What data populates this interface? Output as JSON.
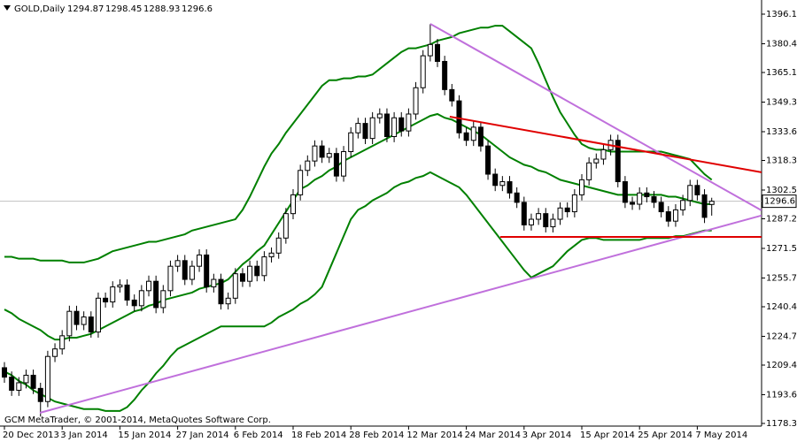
{
  "chart_data": {
    "type": "candlestick",
    "title": "GOLD,Daily",
    "footer": "GCM MetaTrader, © 2001-2014, MetaQuotes Software Corp.",
    "categories": [
      "20 Dec 2013",
      null,
      null,
      null,
      null,
      null,
      null,
      null,
      "3 Jan 2014",
      null,
      null,
      null,
      null,
      null,
      null,
      null,
      "15 Jan 2014",
      null,
      null,
      null,
      null,
      null,
      null,
      null,
      "27 Jan 2014",
      null,
      null,
      null,
      null,
      null,
      null,
      null,
      "6 Feb 2014",
      null,
      null,
      null,
      null,
      null,
      null,
      null,
      "18 Feb 2014",
      null,
      null,
      null,
      null,
      null,
      null,
      null,
      "28 Feb 2014",
      null,
      null,
      null,
      null,
      null,
      null,
      null,
      "12 Mar 2014",
      null,
      null,
      null,
      null,
      null,
      null,
      null,
      "24 Mar 2014",
      null,
      null,
      null,
      null,
      null,
      null,
      null,
      "3 Apr 2014",
      null,
      null,
      null,
      null,
      null,
      null,
      null,
      "15 Apr 2014",
      null,
      null,
      null,
      null,
      null,
      null,
      null,
      "25 Apr 2014",
      null,
      null,
      null,
      null,
      null,
      null,
      null,
      "7 May 2014",
      null,
      null
    ],
    "open": [
      1208,
      1203,
      1196,
      1200,
      1204,
      1197,
      1190,
      1214,
      1218,
      1225,
      1238,
      1231,
      1235,
      1227,
      1245,
      1243,
      1251,
      1252,
      1244,
      1241,
      1249,
      1254,
      1240,
      1249,
      1262,
      1265,
      1255,
      1262,
      1268,
      1251,
      1255,
      1242,
      1245,
      1258,
      1254,
      1262,
      1257,
      1267,
      1269,
      1277,
      1290,
      1300,
      1313,
      1318,
      1326,
      1320,
      1322,
      1310,
      1323,
      1333,
      1338,
      1330,
      1341,
      1343,
      1331,
      1341,
      1334,
      1343,
      1357,
      1374,
      1380,
      1371,
      1356,
      1350,
      1333,
      1329,
      1336,
      1326,
      1311,
      1305,
      1307,
      1301,
      1296,
      1284,
      1287,
      1290,
      1283,
      1287,
      1293,
      1291,
      1300,
      1308,
      1317,
      1319,
      1324,
      1329,
      1307,
      1296,
      1295,
      1301,
      1299,
      1296,
      1291,
      1286,
      1292,
      1297,
      1305,
      1300,
      1294.87
    ],
    "high": [
      1211,
      1206,
      1203,
      1207,
      1207,
      1200,
      1217,
      1221,
      1228,
      1241,
      1241,
      1238,
      1238,
      1248,
      1248,
      1254,
      1255,
      1255,
      1247,
      1252,
      1257,
      1257,
      1252,
      1265,
      1268,
      1268,
      1265,
      1271,
      1271,
      1258,
      1258,
      1248,
      1261,
      1261,
      1265,
      1265,
      1270,
      1272,
      1280,
      1293,
      1303,
      1316,
      1321,
      1329,
      1329,
      1325,
      1325,
      1326,
      1336,
      1341,
      1341,
      1344,
      1346,
      1346,
      1344,
      1344,
      1346,
      1360,
      1377,
      1391,
      1383,
      1374,
      1359,
      1353,
      1336,
      1339,
      1339,
      1329,
      1314,
      1310,
      1310,
      1304,
      1299,
      1290,
      1293,
      1293,
      1290,
      1296,
      1296,
      1303,
      1311,
      1320,
      1322,
      1327,
      1332,
      1332,
      1310,
      1299,
      1304,
      1304,
      1302,
      1299,
      1294,
      1295,
      1300,
      1308,
      1308,
      1303,
      1298.45
    ],
    "low": [
      1200,
      1193,
      1193,
      1197,
      1194,
      1182,
      1187,
      1211,
      1215,
      1222,
      1228,
      1228,
      1224,
      1224,
      1240,
      1240,
      1248,
      1241,
      1238,
      1238,
      1246,
      1237,
      1237,
      1246,
      1259,
      1252,
      1252,
      1259,
      1248,
      1248,
      1239,
      1239,
      1242,
      1251,
      1251,
      1254,
      1254,
      1264,
      1266,
      1274,
      1287,
      1297,
      1310,
      1315,
      1317,
      1317,
      1307,
      1307,
      1320,
      1330,
      1327,
      1327,
      1338,
      1328,
      1328,
      1331,
      1331,
      1340,
      1354,
      1371,
      1368,
      1353,
      1347,
      1330,
      1326,
      1326,
      1323,
      1308,
      1302,
      1302,
      1298,
      1293,
      1281,
      1281,
      1284,
      1280,
      1280,
      1284,
      1288,
      1288,
      1297,
      1305,
      1314,
      1316,
      1321,
      1304,
      1293,
      1292,
      1292,
      1296,
      1293,
      1288,
      1283,
      1283,
      1289,
      1294,
      1297,
      1285,
      1288.93
    ],
    "close": [
      1203,
      1196,
      1200,
      1204,
      1197,
      1190,
      1214,
      1218,
      1225,
      1238,
      1231,
      1235,
      1227,
      1245,
      1243,
      1251,
      1252,
      1244,
      1241,
      1249,
      1254,
      1240,
      1249,
      1262,
      1265,
      1255,
      1262,
      1268,
      1251,
      1255,
      1242,
      1245,
      1258,
      1254,
      1262,
      1257,
      1267,
      1269,
      1277,
      1290,
      1300,
      1313,
      1318,
      1326,
      1320,
      1322,
      1310,
      1323,
      1333,
      1338,
      1330,
      1341,
      1343,
      1331,
      1341,
      1334,
      1343,
      1357,
      1374,
      1380,
      1371,
      1356,
      1350,
      1333,
      1329,
      1336,
      1326,
      1311,
      1305,
      1307,
      1301,
      1296,
      1284,
      1287,
      1290,
      1283,
      1287,
      1293,
      1291,
      1300,
      1308,
      1317,
      1319,
      1324,
      1329,
      1307,
      1296,
      1295,
      1301,
      1299,
      1296,
      1291,
      1286,
      1292,
      1297,
      1305,
      1300,
      1288,
      1296.6
    ],
    "up_color": "#ffffff",
    "down_color": "#000000",
    "bands": [
      {
        "color": "#008000",
        "values": [
          1267,
          1267,
          1266,
          1266,
          1266,
          1265,
          1265,
          1265,
          1265,
          1264,
          1264,
          1264,
          1265,
          1266,
          1268,
          1270,
          1271,
          1272,
          1273,
          1274,
          1275,
          1275,
          1276,
          1277,
          1278,
          1279,
          1281,
          1282,
          1283,
          1284,
          1285,
          1286,
          1287,
          1292,
          1299,
          1307,
          1315,
          1322,
          1327,
          1333,
          1338,
          1343,
          1348,
          1353,
          1358,
          1361,
          1361,
          1362,
          1362,
          1363,
          1363,
          1364,
          1367,
          1370,
          1373,
          1376,
          1378,
          1378,
          1379,
          1380,
          1382,
          1383,
          1384,
          1386,
          1387,
          1388,
          1389,
          1389,
          1390,
          1390,
          1387,
          1384,
          1381,
          1378,
          1370,
          1361,
          1352,
          1344,
          1338,
          1332,
          1327,
          1325,
          1324,
          1324,
          1323,
          1323,
          1323,
          1323,
          1323,
          1323,
          1323,
          1323,
          1322,
          1321,
          1320,
          1319,
          1315,
          1311,
          1308
        ]
      },
      {
        "color": "#008000",
        "values": [
          1239,
          1237,
          1234,
          1232,
          1230,
          1228,
          1225,
          1223,
          1223,
          1224,
          1224,
          1225,
          1226,
          1228,
          1230,
          1232,
          1234,
          1236,
          1238,
          1239,
          1241,
          1242,
          1244,
          1245,
          1246,
          1247,
          1248,
          1250,
          1251,
          1252,
          1253,
          1255,
          1259,
          1263,
          1266,
          1270,
          1273,
          1279,
          1285,
          1291,
          1297,
          1303,
          1305,
          1308,
          1310,
          1313,
          1315,
          1318,
          1320,
          1322,
          1324,
          1326,
          1328,
          1330,
          1332,
          1334,
          1336,
          1338,
          1340,
          1342,
          1343,
          1341,
          1340,
          1338,
          1336,
          1334,
          1332,
          1329,
          1326,
          1323,
          1320,
          1318,
          1316,
          1315,
          1313,
          1312,
          1310,
          1308,
          1307,
          1306,
          1305,
          1304,
          1303,
          1302,
          1301,
          1300,
          1300,
          1300,
          1300,
          1300,
          1300,
          1300,
          1299,
          1299,
          1298,
          1297,
          1296,
          1295,
          1295
        ]
      },
      {
        "color": "#008000",
        "values": [
          1206,
          1204,
          1201,
          1199,
          1196,
          1194,
          1192,
          1190,
          1189,
          1188,
          1187,
          1186,
          1186,
          1186,
          1185,
          1185,
          1185,
          1187,
          1191,
          1196,
          1200,
          1205,
          1209,
          1214,
          1218,
          1220,
          1222,
          1224,
          1226,
          1228,
          1230,
          1230,
          1230,
          1230,
          1230,
          1230,
          1230,
          1232,
          1235,
          1237,
          1239,
          1242,
          1244,
          1247,
          1251,
          1260,
          1269,
          1278,
          1287,
          1292,
          1294,
          1297,
          1299,
          1301,
          1304,
          1306,
          1307,
          1309,
          1310,
          1312,
          1310,
          1308,
          1306,
          1304,
          1300,
          1295,
          1290,
          1285,
          1280,
          1275,
          1270,
          1265,
          1260,
          1256,
          1258,
          1260,
          1262,
          1266,
          1270,
          1273,
          1276,
          1277,
          1277,
          1276,
          1276,
          1276,
          1276,
          1276,
          1276,
          1277,
          1277,
          1277,
          1277,
          1278,
          1278,
          1279,
          1280,
          1281,
          1281
        ]
      }
    ],
    "trendlines": [
      {
        "color": "#c070dc",
        "points": [
          {
            "x": 59,
            "y": 1391
          },
          {
            "x": 104.9,
            "y": 1291.7
          }
        ]
      },
      {
        "color": "#c070dc",
        "points": [
          {
            "x": 4.9,
            "y": 1184
          },
          {
            "x": 104.9,
            "y": 1289
          }
        ]
      },
      {
        "color": "#e00000",
        "points": [
          {
            "x": 61.7,
            "y": 1341.6
          },
          {
            "x": 104.9,
            "y": 1312
          }
        ]
      },
      {
        "color": "#e00000",
        "points": [
          {
            "x": 68.7,
            "y": 1277.6
          },
          {
            "x": 104.9,
            "y": 1277.6
          }
        ]
      }
    ],
    "price_line_color": "#c0c0c0",
    "ylim": [
      1176.94,
      1403.68
    ],
    "yticks": [
      1396.15,
      {
        "value": 1380.4,
        "label": "1380.40"
      },
      {
        "value": 1365.1,
        "label": "1365.10"
      },
      1349.35,
      {
        "value": 1333.6,
        "label": "1333.60"
      },
      {
        "value": 1318.3,
        "label": "1318.30"
      },
      1302.55,
      1287.25,
      {
        "value": 1271.5,
        "label": "1271.50"
      },
      1255.75,
      1240.45,
      {
        "value": 1224.7,
        "label": "1224.70"
      },
      {
        "value": 1209.4,
        "label": "1209.40"
      },
      1193.65,
      1178.35
    ],
    "grid": false
  }
}
